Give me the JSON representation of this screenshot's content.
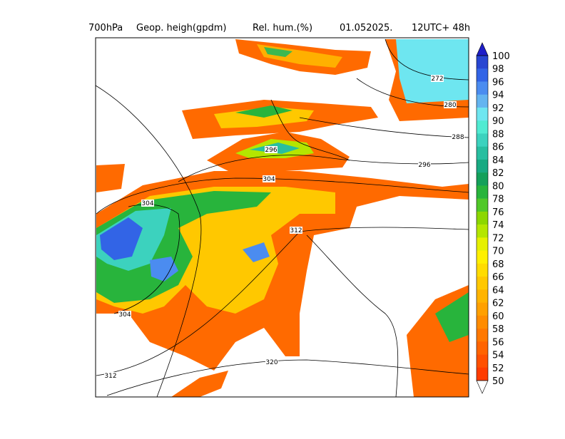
{
  "header": {
    "level": "700hPa",
    "field1": "Geop. heigh(gpdm)",
    "field2": "Rel. hum.(%)",
    "date": "01.052025.",
    "time": "12UTC+ 48h"
  },
  "colorbar": {
    "labels": [
      100,
      98,
      96,
      94,
      92,
      90,
      88,
      86,
      84,
      82,
      80,
      78,
      76,
      74,
      72,
      70,
      68,
      66,
      64,
      62,
      60,
      58,
      56,
      54,
      52,
      50
    ],
    "colors": [
      "#2846d2",
      "#3264e6",
      "#4b8cf0",
      "#64b4f0",
      "#6ee6f0",
      "#50ebd2",
      "#3cd2be",
      "#28bea0",
      "#18aa82",
      "#14a05a",
      "#28b43c",
      "#50c828",
      "#8cd700",
      "#b4e600",
      "#e6f000",
      "#fff000",
      "#ffdc00",
      "#ffc800",
      "#ffb400",
      "#ffa000",
      "#ff8c00",
      "#ff7800",
      "#ff6400",
      "#ff5000",
      "#ff3c00"
    ],
    "top_color": "#1e1ec8",
    "bottom_color": "#ffffff"
  },
  "contour_labels": [
    272,
    280,
    288,
    296,
    296,
    304,
    304,
    312,
    312,
    304,
    320
  ]
}
